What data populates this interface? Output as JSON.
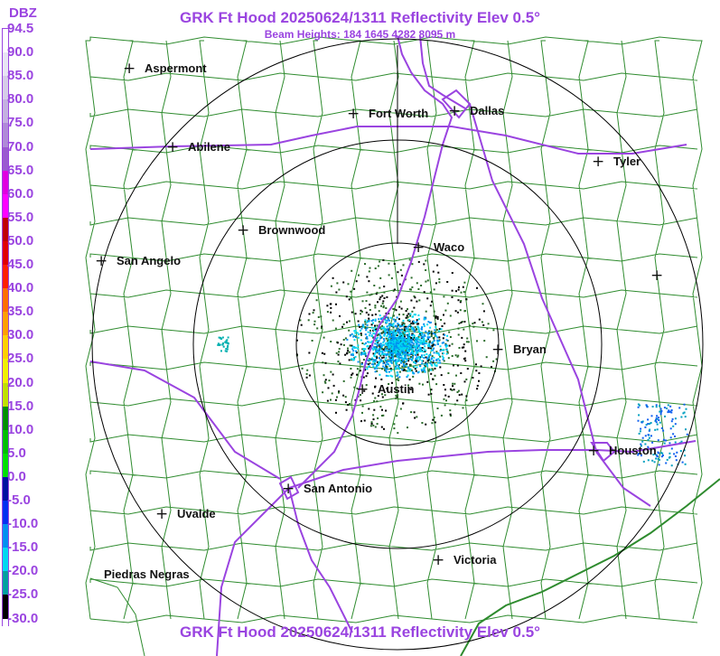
{
  "header": {
    "title": "GRK Ft Hood 20250624/1311 Reflectivity Elev 0.5°",
    "beam_heights": "Beam Heights: 184 1645 4282 8095 m",
    "footer_title": "GRK Ft Hood 20250624/1311 Reflectivity Elev 0.5°"
  },
  "scale": {
    "unit": "DBZ",
    "ticks": [
      "94.5",
      "90.0",
      "85.0",
      "80.0",
      "75.0",
      "70.0",
      "65.0",
      "60.0",
      "55.0",
      "50.0",
      "45.0",
      "40.0",
      "35.0",
      "30.0",
      "25.0",
      "20.0",
      "15.0",
      "10.0",
      "5.0",
      "0.0",
      "-5.0",
      "-10.0",
      "-15.0",
      "-20.0",
      "-25.0",
      "-30.0"
    ],
    "colors": [
      "#ffffff",
      "#e8e4f4",
      "#d6cce8",
      "#c4b0e0",
      "#b08ad8",
      "#9a5ad0",
      "#e000e0",
      "#ff00ff",
      "#c00000",
      "#e00000",
      "#ff2000",
      "#ff7000",
      "#ffa000",
      "#ffd000",
      "#f0f000",
      "#c0e000",
      "#009000",
      "#00c000",
      "#00e000",
      "#0010a0",
      "#0030f0",
      "#0090f0",
      "#00d8f0",
      "#00a0a0",
      "#000000",
      "#ffffff"
    ]
  },
  "cities": [
    {
      "name": "Aspermont",
      "marker": "+"
    },
    {
      "name": "Fort Worth",
      "marker": "+"
    },
    {
      "name": "Dallas",
      "marker": "+"
    },
    {
      "name": "Abilene",
      "marker": "+"
    },
    {
      "name": "Tyler",
      "marker": "+"
    },
    {
      "name": "Brownwood",
      "marker": "+"
    },
    {
      "name": "Waco",
      "marker": "+"
    },
    {
      "name": "San Angelo",
      "marker": "+"
    },
    {
      "name": "Bryan",
      "marker": "+"
    },
    {
      "name": "Austin",
      "marker": "+"
    },
    {
      "name": "Houston",
      "marker": "+"
    },
    {
      "name": "San Antonio",
      "marker": "+"
    },
    {
      "name": "Uvalde",
      "marker": "+"
    },
    {
      "name": "Victoria",
      "marker": "+"
    },
    {
      "name": "Piedras Negras",
      "marker": ""
    },
    {
      "name": "",
      "marker": "+"
    }
  ],
  "colors": {
    "title": "#9a44e0",
    "county_lines": "#2e8b2e",
    "highways": "#9a44e0",
    "range_rings": "#000000",
    "echo_light": "#00d8f0",
    "echo_mid": "#0090f0",
    "echo_dark": "#000000"
  }
}
